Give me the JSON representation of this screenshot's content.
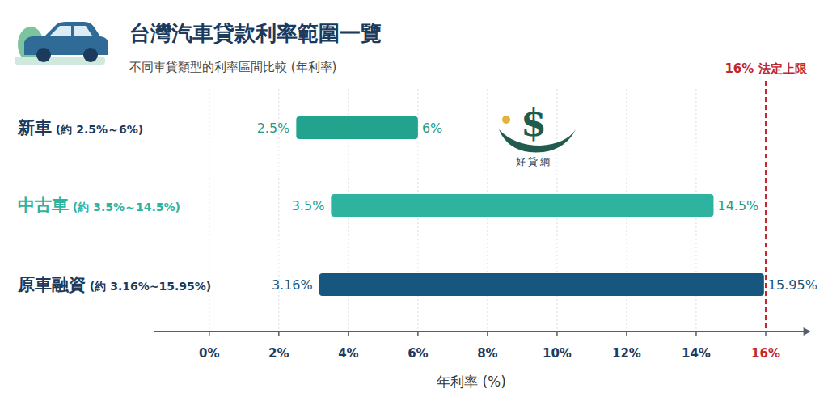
{
  "chart_data": {
    "type": "bar",
    "orientation": "horizontal",
    "title": "台灣汽車貸款利率範圍一覽",
    "subtitle": "不同車貸類型的利率區間比較 (年利率)",
    "categories": [
      "新車 (約 2.5%～6%)",
      "中古車 (約 3.5%～14.5%)",
      "原車融資 (約 3.16%~15.95%)"
    ],
    "low": [
      2.5,
      3.5,
      3.16
    ],
    "low_labels": [
      "2.5%",
      "3.5%",
      "3.16%"
    ],
    "values": [
      6,
      14.5,
      15.95
    ],
    "value_labels": [
      "6%",
      "14.5%",
      "15.95%"
    ],
    "colors": [
      "#22a38d",
      "#2fb3a1",
      "#17577f"
    ],
    "data_labels": true,
    "xlim": [
      -1.6,
      17.2
    ],
    "xticks": [
      {
        "value": 0,
        "label": "0%"
      },
      {
        "value": 2,
        "label": "2%"
      },
      {
        "value": 4,
        "label": "4%"
      },
      {
        "value": 6,
        "label": "6%"
      },
      {
        "value": 8,
        "label": "8%"
      },
      {
        "value": 10,
        "label": "10%"
      },
      {
        "value": 12,
        "label": "12%"
      },
      {
        "value": 14,
        "label": "14%"
      },
      {
        "value": 16,
        "label": "16%"
      }
    ],
    "x_label": "年利率 (%)",
    "grid": true,
    "annotations": [
      {
        "x": 16,
        "text": "16% 法定上限",
        "color": "#c1272d"
      }
    ],
    "watermark": {
      "symbol": "$",
      "text": "好貸網"
    }
  }
}
